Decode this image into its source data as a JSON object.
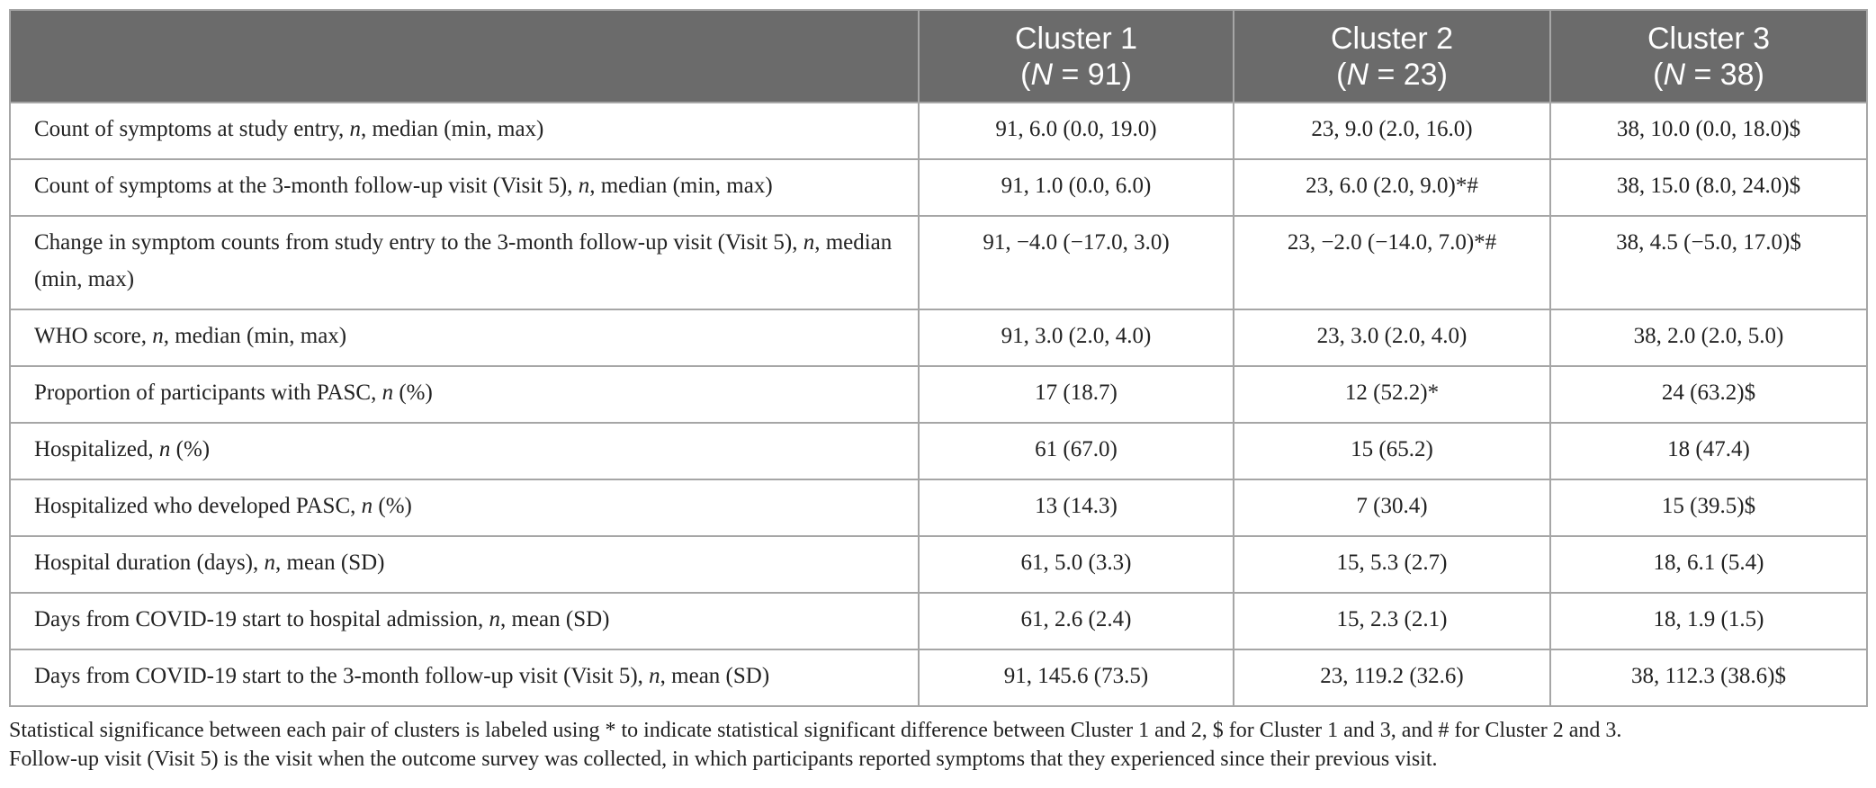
{
  "table": {
    "headers": [
      {
        "line1": "",
        "line2": ""
      },
      {
        "line1": "Cluster 1",
        "line2": "(N = 91)"
      },
      {
        "line1": "Cluster 2",
        "line2": "(N = 23)"
      },
      {
        "line1": "Cluster 3",
        "line2": "(N = 38)"
      }
    ],
    "rows": [
      {
        "label": "Count of symptoms at study entry, n, median (min, max)",
        "c1": "91, 6.0 (0.0, 19.0)",
        "c2": "23, 9.0 (2.0, 16.0)",
        "c3": "38, 10.0 (0.0, 18.0)$"
      },
      {
        "label": "Count of symptoms at the 3-month follow-up visit (Visit 5), n, median (min, max)",
        "c1": "91, 1.0 (0.0, 6.0)",
        "c2": "23, 6.0 (2.0, 9.0)*#",
        "c3": "38, 15.0 (8.0, 24.0)$"
      },
      {
        "label": "Change in symptom counts from study entry to the 3-month follow-up visit (Visit 5), n, median (min, max)",
        "c1": "91, −4.0 (−17.0, 3.0)",
        "c2": "23, −2.0 (−14.0, 7.0)*#",
        "c3": "38, 4.5 (−5.0, 17.0)$"
      },
      {
        "label": "WHO score, n, median (min, max)",
        "c1": "91, 3.0 (2.0, 4.0)",
        "c2": "23, 3.0 (2.0, 4.0)",
        "c3": "38, 2.0 (2.0, 5.0)"
      },
      {
        "label": "Proportion of participants with PASC, n (%)",
        "c1": "17 (18.7)",
        "c2": "12 (52.2)*",
        "c3": "24 (63.2)$"
      },
      {
        "label": "Hospitalized, n (%)",
        "c1": "61 (67.0)",
        "c2": "15 (65.2)",
        "c3": "18 (47.4)"
      },
      {
        "label": "Hospitalized who developed PASC, n (%)",
        "c1": "13 (14.3)",
        "c2": "7 (30.4)",
        "c3": "15 (39.5)$"
      },
      {
        "label": "Hospital duration (days), n, mean (SD)",
        "c1": "61, 5.0 (3.3)",
        "c2": "15, 5.3 (2.7)",
        "c3": "18, 6.1 (5.4)"
      },
      {
        "label": "Days from COVID-19 start to hospital admission, n, mean (SD)",
        "c1": "61, 2.6 (2.4)",
        "c2": "15, 2.3 (2.1)",
        "c3": "18, 1.9 (1.5)"
      },
      {
        "label": "Days from COVID-19 start to the 3-month follow-up visit (Visit 5), n, mean (SD)",
        "c1": "91, 145.6 (73.5)",
        "c2": "23, 119.2 (32.6)",
        "c3": "38, 112.3 (38.6)$"
      }
    ]
  },
  "footnote": {
    "line1": "Statistical significance between each pair of clusters is labeled using * to indicate statistical significant difference between Cluster 1 and 2, $ for Cluster 1 and 3, and # for Cluster 2 and 3.",
    "line2": "Follow-up visit (Visit 5) is the visit when the outcome survey was collected, in which participants reported symptoms that they experienced since their previous visit."
  },
  "colors": {
    "header_bg": "#6b6b6b",
    "header_text": "#ffffff",
    "border": "#a6a6a6",
    "body_text": "#222222"
  }
}
